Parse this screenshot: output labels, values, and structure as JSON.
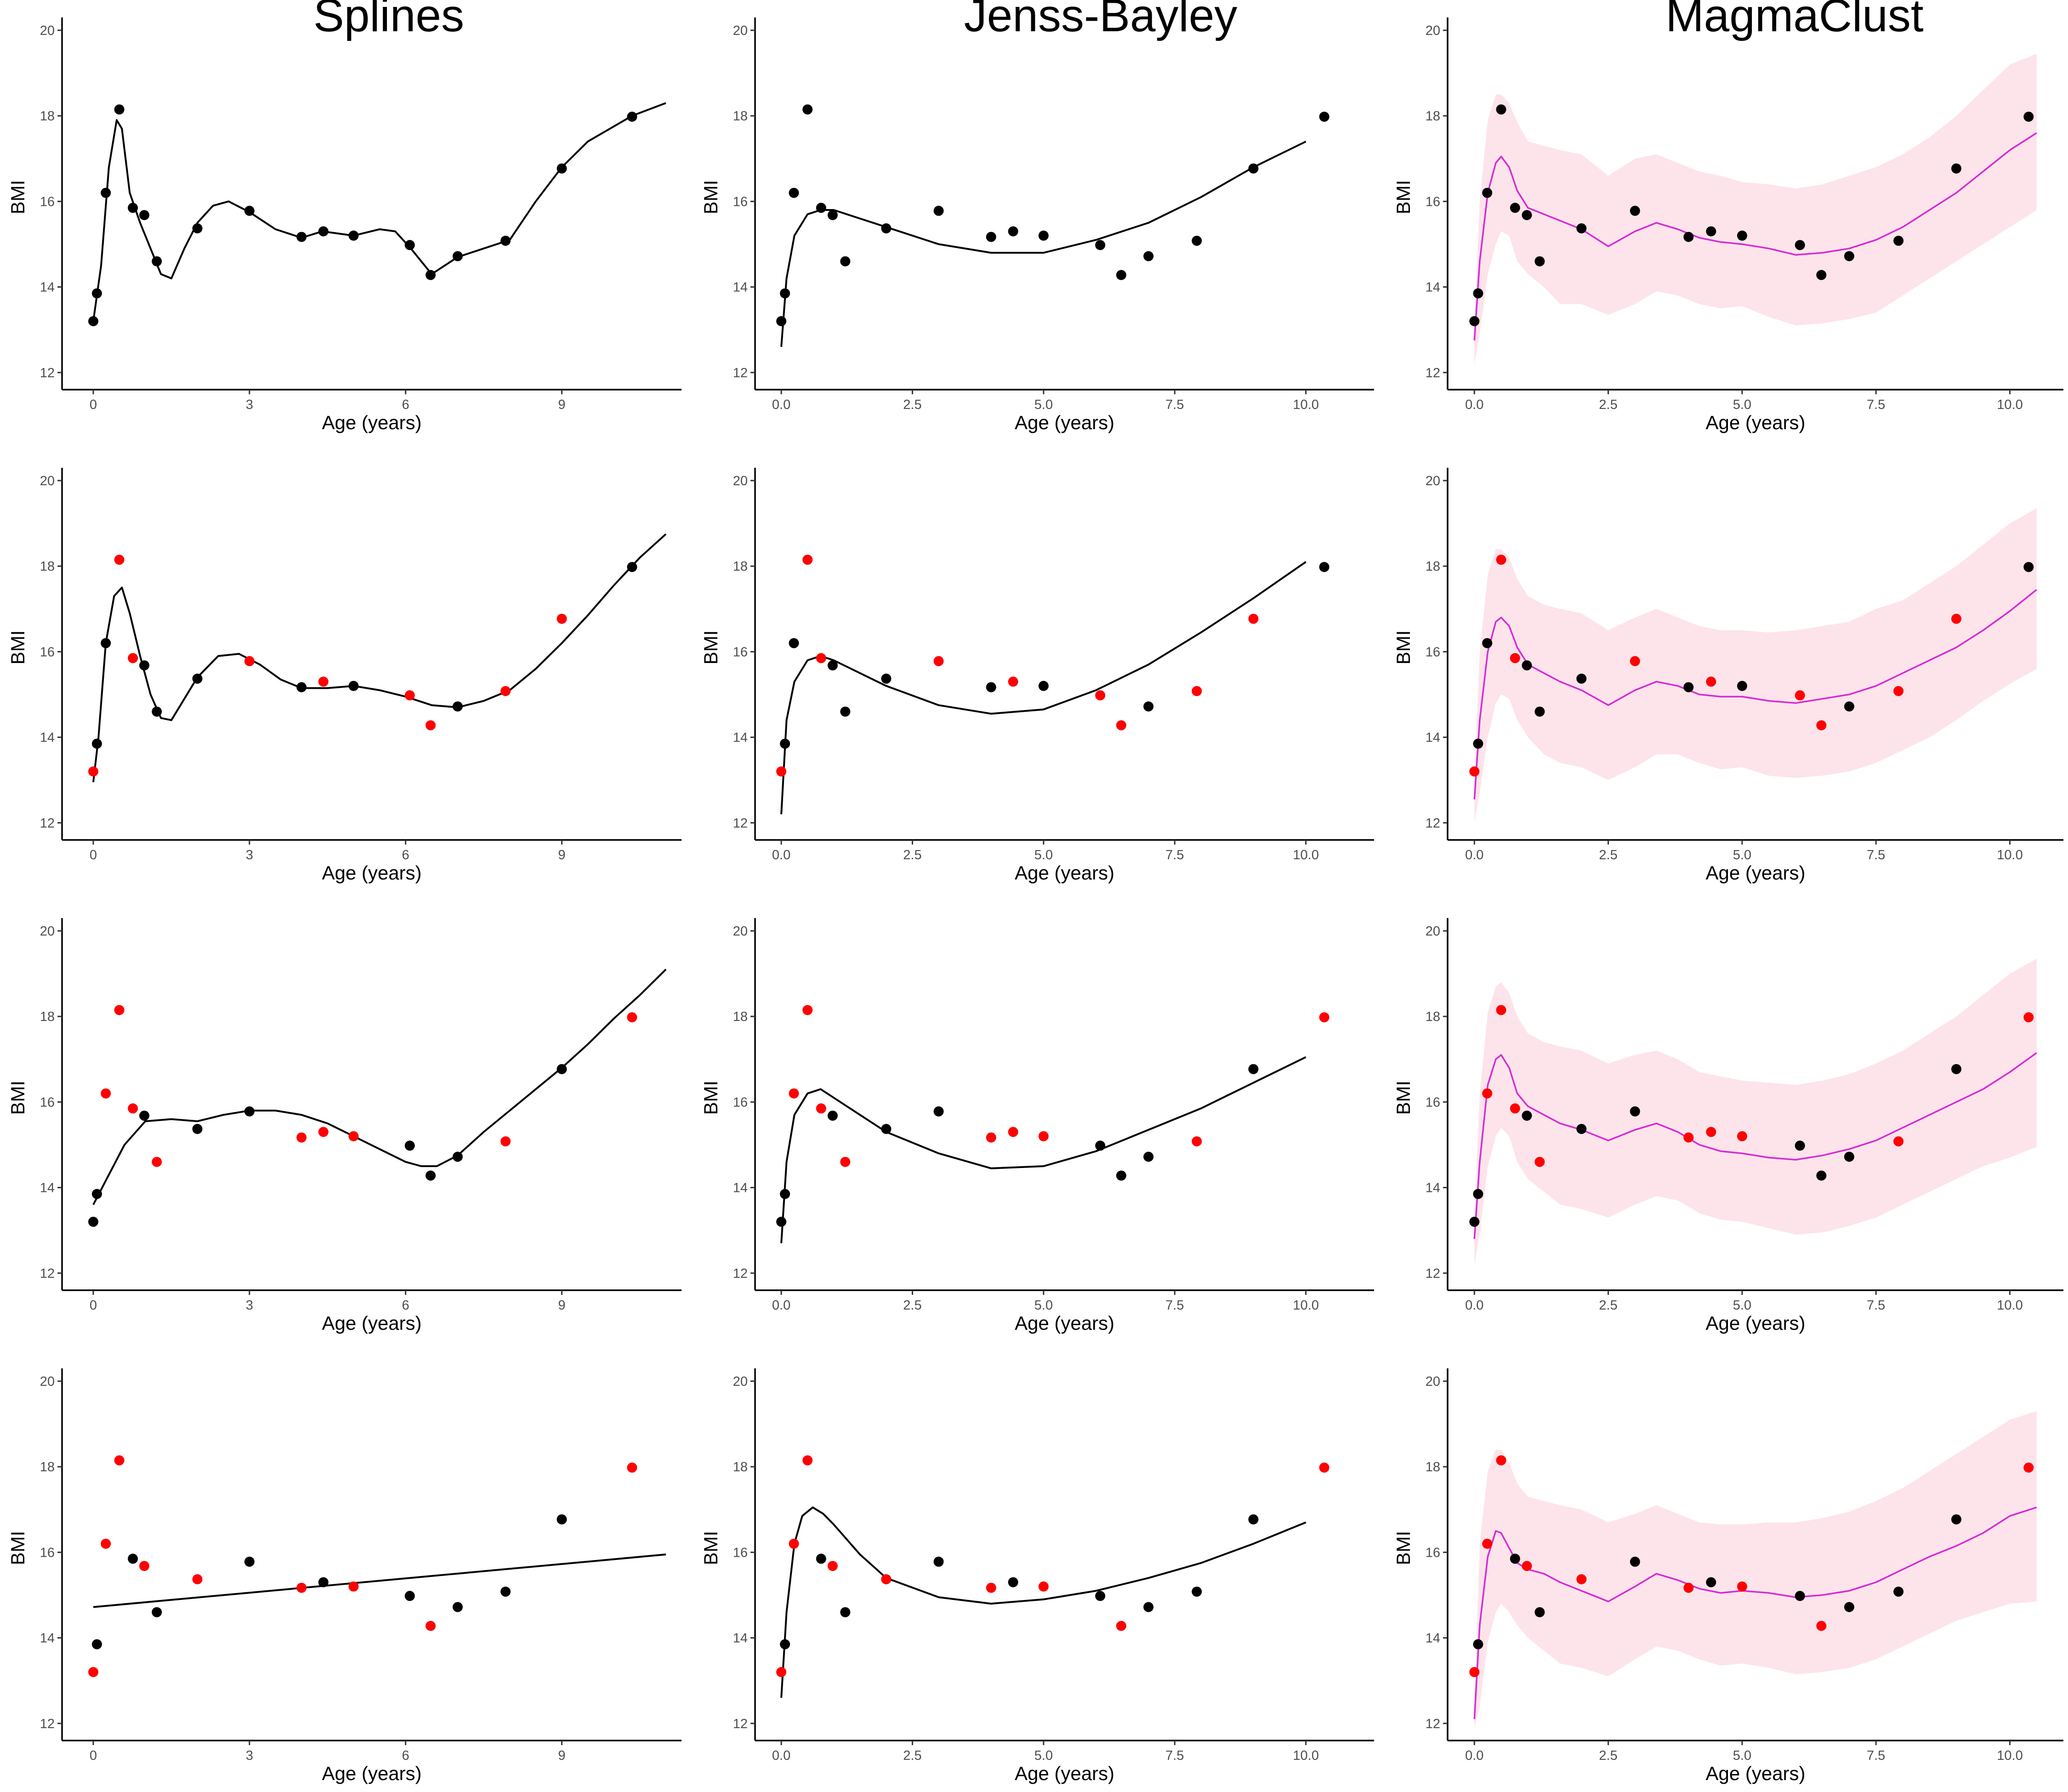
{
  "figure": {
    "column_titles": [
      "Splines",
      "Jenss-Bayley",
      "MagmaClust"
    ],
    "colors": {
      "observed_point": "#000000",
      "held_out_point": "#ff0000",
      "fit_line": "#000000",
      "magma_line": "#d62ad6",
      "credible_band": "#fde4ea"
    }
  },
  "chart_data": {
    "type": "scatter",
    "xlabel": "Age (years)",
    "ylabel": "BMI",
    "ylim": [
      11.6,
      20.3
    ],
    "yticks": [
      12,
      14,
      16,
      18,
      20
    ],
    "axes_by_column": [
      {
        "xlim": [
          -0.6,
          11.3
        ],
        "xticks": [
          0,
          3,
          6,
          9
        ],
        "xtick_labels": [
          "0",
          "3",
          "6",
          "9"
        ]
      },
      {
        "xlim": [
          -0.5,
          11.3
        ],
        "xticks": [
          0,
          2.5,
          5,
          7.5,
          10
        ],
        "xtick_labels": [
          "0.0",
          "2.5",
          "5.0",
          "7.5",
          "10.0"
        ]
      },
      {
        "xlim": [
          -0.5,
          11.0
        ],
        "xticks": [
          0,
          2.5,
          5,
          7.5,
          10
        ],
        "xtick_labels": [
          "0.0",
          "2.5",
          "5.0",
          "7.5",
          "10.0"
        ]
      }
    ],
    "points": {
      "x": [
        0.0,
        0.07,
        0.24,
        0.5,
        0.76,
        0.98,
        1.22,
        2.0,
        3.0,
        4.0,
        4.42,
        5.0,
        6.08,
        6.48,
        7.0,
        7.92,
        9.0,
        10.35
      ],
      "y": [
        13.2,
        13.85,
        16.2,
        18.15,
        15.85,
        15.68,
        14.6,
        15.37,
        15.78,
        15.17,
        15.3,
        15.2,
        14.98,
        14.28,
        14.72,
        15.08,
        16.77,
        17.98
      ]
    },
    "rows": [
      {
        "held_out": [],
        "splines": {
          "x": [
            0,
            0.15,
            0.3,
            0.45,
            0.55,
            0.7,
            0.9,
            1.1,
            1.3,
            1.5,
            1.75,
            2.0,
            2.3,
            2.6,
            3.0,
            3.5,
            4.0,
            4.4,
            5.0,
            5.5,
            5.8,
            6.1,
            6.5,
            7.0,
            7.5,
            8.0,
            8.5,
            9.0,
            9.5,
            10.35,
            11.0
          ],
          "y": [
            13.2,
            14.5,
            16.8,
            17.9,
            17.7,
            16.2,
            15.5,
            14.9,
            14.3,
            14.2,
            14.9,
            15.5,
            15.9,
            16.0,
            15.75,
            15.35,
            15.15,
            15.3,
            15.2,
            15.35,
            15.3,
            14.9,
            14.3,
            14.7,
            14.9,
            15.1,
            16.0,
            16.8,
            17.4,
            18.0,
            18.3
          ]
        },
        "jenss": {
          "x": [
            0,
            0.1,
            0.25,
            0.5,
            0.75,
            1.0,
            1.5,
            2.0,
            3.0,
            4.0,
            5.0,
            6.0,
            7.0,
            8.0,
            9.0,
            10.0
          ],
          "y": [
            12.6,
            14.2,
            15.2,
            15.7,
            15.8,
            15.8,
            15.6,
            15.4,
            15.0,
            14.8,
            14.8,
            15.1,
            15.5,
            16.1,
            16.8,
            17.4
          ]
        },
        "magma": {
          "x": [
            0,
            0.1,
            0.25,
            0.4,
            0.5,
            0.65,
            0.8,
            1.0,
            1.3,
            1.6,
            2.0,
            2.5,
            3.0,
            3.4,
            3.8,
            4.2,
            4.6,
            5.0,
            5.5,
            6.0,
            6.5,
            7.0,
            7.5,
            8.0,
            8.5,
            9.0,
            9.5,
            10.0,
            10.5
          ],
          "mean": [
            12.75,
            14.6,
            16.2,
            16.9,
            17.05,
            16.8,
            16.25,
            15.85,
            15.7,
            15.55,
            15.35,
            14.95,
            15.3,
            15.5,
            15.35,
            15.15,
            15.05,
            15.0,
            14.9,
            14.75,
            14.8,
            14.9,
            15.1,
            15.4,
            15.8,
            16.2,
            16.7,
            17.2,
            17.6
          ],
          "lower": [
            12.2,
            12.9,
            14.3,
            15.0,
            15.3,
            15.2,
            14.6,
            14.3,
            14.0,
            13.6,
            13.6,
            13.35,
            13.6,
            13.9,
            13.8,
            13.6,
            13.5,
            13.55,
            13.3,
            13.1,
            13.15,
            13.25,
            13.4,
            13.8,
            14.2,
            14.6,
            15.0,
            15.4,
            15.8
          ],
          "upper": [
            13.2,
            16.0,
            17.9,
            18.5,
            18.5,
            18.3,
            17.85,
            17.4,
            17.3,
            17.2,
            17.1,
            16.6,
            17.0,
            17.1,
            16.9,
            16.7,
            16.6,
            16.45,
            16.4,
            16.3,
            16.4,
            16.6,
            16.8,
            17.1,
            17.5,
            18.0,
            18.6,
            19.2,
            19.45
          ]
        }
      },
      {
        "held_out": [
          0,
          3,
          4,
          8,
          10,
          12,
          13,
          15,
          16
        ],
        "splines": {
          "x": [
            0,
            0.1,
            0.24,
            0.4,
            0.55,
            0.7,
            0.9,
            1.1,
            1.3,
            1.5,
            1.75,
            2.0,
            2.4,
            2.8,
            3.2,
            3.6,
            4.0,
            4.5,
            5.0,
            5.5,
            6.0,
            6.5,
            7.0,
            7.5,
            8.0,
            8.5,
            9.0,
            9.5,
            10.0,
            10.5,
            11.0
          ],
          "y": [
            12.95,
            14.0,
            16.2,
            17.3,
            17.5,
            16.9,
            15.9,
            15.0,
            14.45,
            14.4,
            14.9,
            15.4,
            15.9,
            15.95,
            15.7,
            15.35,
            15.15,
            15.15,
            15.2,
            15.1,
            14.95,
            14.75,
            14.7,
            14.85,
            15.1,
            15.6,
            16.2,
            16.85,
            17.55,
            18.2,
            18.75
          ]
        },
        "jenss": {
          "x": [
            0,
            0.1,
            0.25,
            0.5,
            0.75,
            1.0,
            1.5,
            2.0,
            3.0,
            4.0,
            5.0,
            6.0,
            7.0,
            8.0,
            9.0,
            10.0
          ],
          "y": [
            12.2,
            14.4,
            15.3,
            15.8,
            15.9,
            15.8,
            15.5,
            15.2,
            14.75,
            14.55,
            14.65,
            15.1,
            15.7,
            16.45,
            17.25,
            18.1
          ]
        },
        "magma": {
          "x": [
            0,
            0.1,
            0.25,
            0.4,
            0.5,
            0.65,
            0.8,
            1.0,
            1.3,
            1.6,
            2.0,
            2.5,
            3.0,
            3.4,
            3.8,
            4.2,
            4.6,
            5.0,
            5.5,
            6.0,
            6.5,
            7.0,
            7.5,
            8.0,
            8.5,
            9.0,
            9.5,
            10.0,
            10.5
          ],
          "mean": [
            12.55,
            14.4,
            16.0,
            16.7,
            16.8,
            16.6,
            16.1,
            15.7,
            15.5,
            15.3,
            15.1,
            14.75,
            15.1,
            15.3,
            15.2,
            15.0,
            14.95,
            14.95,
            14.85,
            14.8,
            14.9,
            15.0,
            15.2,
            15.5,
            15.8,
            16.1,
            16.5,
            16.95,
            17.45
          ],
          "lower": [
            12.0,
            12.7,
            14.0,
            14.8,
            15.0,
            14.9,
            14.4,
            14.0,
            13.6,
            13.4,
            13.3,
            13.0,
            13.3,
            13.6,
            13.6,
            13.4,
            13.25,
            13.3,
            13.1,
            13.05,
            13.1,
            13.2,
            13.4,
            13.7,
            14.0,
            14.4,
            14.85,
            15.25,
            15.6
          ],
          "upper": [
            13.1,
            16.0,
            17.8,
            18.4,
            18.4,
            18.2,
            17.7,
            17.3,
            17.1,
            17.0,
            16.9,
            16.5,
            16.8,
            17.0,
            16.8,
            16.6,
            16.5,
            16.5,
            16.45,
            16.5,
            16.6,
            16.7,
            17.0,
            17.2,
            17.6,
            18.0,
            18.5,
            19.0,
            19.35
          ]
        }
      },
      {
        "held_out": [
          2,
          3,
          4,
          6,
          9,
          10,
          11,
          15,
          17
        ],
        "splines": {
          "x": [
            0,
            0.3,
            0.6,
            1.0,
            1.5,
            2.0,
            2.5,
            3.0,
            3.5,
            4.0,
            4.5,
            5.0,
            5.5,
            6.0,
            6.3,
            6.6,
            7.0,
            7.5,
            8.0,
            8.5,
            9.0,
            9.5,
            10.0,
            10.5,
            11.0
          ],
          "y": [
            13.6,
            14.3,
            15.0,
            15.55,
            15.6,
            15.55,
            15.7,
            15.8,
            15.8,
            15.7,
            15.5,
            15.2,
            14.9,
            14.6,
            14.5,
            14.5,
            14.75,
            15.3,
            15.8,
            16.3,
            16.8,
            17.35,
            17.95,
            18.5,
            19.1
          ]
        },
        "jenss": {
          "x": [
            0,
            0.1,
            0.25,
            0.5,
            0.75,
            1.0,
            1.5,
            2.0,
            3.0,
            4.0,
            5.0,
            6.0,
            7.0,
            8.0,
            9.0,
            10.0
          ],
          "y": [
            12.7,
            14.6,
            15.7,
            16.2,
            16.3,
            16.1,
            15.7,
            15.3,
            14.8,
            14.45,
            14.5,
            14.85,
            15.35,
            15.85,
            16.45,
            17.05
          ]
        },
        "magma": {
          "x": [
            0,
            0.1,
            0.25,
            0.4,
            0.5,
            0.65,
            0.8,
            1.0,
            1.3,
            1.6,
            2.0,
            2.5,
            3.0,
            3.4,
            3.8,
            4.2,
            4.6,
            5.0,
            5.5,
            6.0,
            6.5,
            7.0,
            7.5,
            8.0,
            8.5,
            9.0,
            9.5,
            10.0,
            10.5
          ],
          "mean": [
            12.8,
            14.6,
            16.4,
            17.0,
            17.1,
            16.8,
            16.2,
            15.9,
            15.7,
            15.5,
            15.35,
            15.1,
            15.35,
            15.5,
            15.3,
            15.0,
            14.85,
            14.8,
            14.7,
            14.65,
            14.75,
            14.9,
            15.1,
            15.4,
            15.7,
            16.0,
            16.3,
            16.7,
            17.15
          ],
          "lower": [
            12.2,
            12.9,
            14.5,
            15.2,
            15.4,
            15.2,
            14.6,
            14.2,
            13.9,
            13.6,
            13.5,
            13.3,
            13.6,
            13.8,
            13.7,
            13.4,
            13.25,
            13.2,
            13.05,
            12.9,
            12.95,
            13.1,
            13.3,
            13.6,
            13.9,
            14.2,
            14.5,
            14.7,
            14.95
          ],
          "upper": [
            13.3,
            16.2,
            18.1,
            18.7,
            18.8,
            18.55,
            18.0,
            17.6,
            17.4,
            17.3,
            17.2,
            16.9,
            17.1,
            17.2,
            17.0,
            16.7,
            16.6,
            16.5,
            16.45,
            16.4,
            16.5,
            16.65,
            16.9,
            17.2,
            17.6,
            18.0,
            18.5,
            19.0,
            19.35
          ]
        }
      },
      {
        "held_out": [
          0,
          2,
          3,
          5,
          7,
          9,
          11,
          13,
          17
        ],
        "splines": {
          "x": [
            0,
            11.0
          ],
          "y": [
            14.72,
            15.95
          ]
        },
        "jenss": {
          "x": [
            0,
            0.1,
            0.25,
            0.4,
            0.6,
            0.8,
            1.0,
            1.5,
            2.0,
            3.0,
            4.0,
            5.0,
            6.0,
            7.0,
            8.0,
            9.0,
            10.0
          ],
          "y": [
            12.6,
            14.6,
            16.2,
            16.85,
            17.05,
            16.9,
            16.65,
            15.95,
            15.4,
            14.95,
            14.8,
            14.9,
            15.1,
            15.4,
            15.75,
            16.2,
            16.7
          ]
        },
        "magma": {
          "x": [
            0,
            0.1,
            0.25,
            0.4,
            0.5,
            0.65,
            0.8,
            1.0,
            1.3,
            1.6,
            2.0,
            2.5,
            3.0,
            3.4,
            3.8,
            4.2,
            4.6,
            5.0,
            5.5,
            6.0,
            6.5,
            7.0,
            7.5,
            8.0,
            8.5,
            9.0,
            9.5,
            10.0,
            10.5
          ],
          "mean": [
            12.1,
            14.3,
            15.9,
            16.5,
            16.45,
            16.1,
            15.75,
            15.6,
            15.5,
            15.3,
            15.1,
            14.85,
            15.2,
            15.5,
            15.35,
            15.15,
            15.05,
            15.1,
            15.05,
            14.95,
            15.0,
            15.1,
            15.3,
            15.6,
            15.9,
            16.15,
            16.45,
            16.85,
            17.05
          ],
          "lower": [
            11.9,
            12.4,
            13.9,
            14.6,
            14.8,
            14.6,
            14.3,
            14.0,
            13.7,
            13.4,
            13.3,
            13.1,
            13.5,
            13.8,
            13.7,
            13.5,
            13.35,
            13.4,
            13.3,
            13.15,
            13.2,
            13.3,
            13.5,
            13.8,
            14.1,
            14.4,
            14.6,
            14.8,
            14.85
          ],
          "upper": [
            12.4,
            16.2,
            17.9,
            18.4,
            18.4,
            18.1,
            17.6,
            17.3,
            17.2,
            17.1,
            17.0,
            16.7,
            16.9,
            17.1,
            16.9,
            16.7,
            16.65,
            16.65,
            16.7,
            16.7,
            16.8,
            16.95,
            17.2,
            17.5,
            17.9,
            18.3,
            18.7,
            19.1,
            19.3
          ]
        }
      }
    ]
  }
}
